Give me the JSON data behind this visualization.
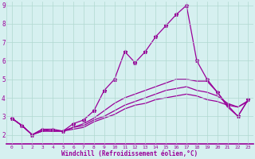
{
  "xlabel": "Windchill (Refroidissement éolien,°C)",
  "bg_color": "#d6f0f0",
  "line_color": "#990099",
  "xlim": [
    -0.5,
    23.5
  ],
  "ylim": [
    1.5,
    9.2
  ],
  "xtick_labels": [
    "0",
    "1",
    "2",
    "3",
    "4",
    "5",
    "6",
    "7",
    "8",
    "9",
    "10",
    "11",
    "12",
    "13",
    "14",
    "15",
    "16",
    "17",
    "18",
    "19",
    "20",
    "21",
    "22",
    "23"
  ],
  "xtick_positions": [
    0,
    1,
    2,
    3,
    4,
    5,
    6,
    7,
    8,
    9,
    10,
    11,
    12,
    13,
    14,
    15,
    16,
    17,
    18,
    19,
    20,
    21,
    22,
    23
  ],
  "ytick_positions": [
    2,
    3,
    4,
    5,
    6,
    7,
    8,
    9
  ],
  "ytick_labels": [
    "2",
    "3",
    "4",
    "5",
    "6",
    "7",
    "8",
    "9"
  ],
  "grid_color": "#b0d8d0",
  "series": [
    {
      "x": [
        0,
        1,
        2,
        3,
        4,
        5,
        6,
        7,
        8,
        9,
        10,
        11,
        12,
        13,
        14,
        15,
        16,
        17,
        18,
        19,
        20,
        21,
        22,
        23
      ],
      "y": [
        2.9,
        2.5,
        2.0,
        2.3,
        2.3,
        2.2,
        2.6,
        2.8,
        3.3,
        4.4,
        5.0,
        6.5,
        5.9,
        6.5,
        7.3,
        7.9,
        8.5,
        9.0,
        6.0,
        5.0,
        4.3,
        3.6,
        3.0,
        3.9
      ],
      "marker": "*",
      "lw": 0.9
    },
    {
      "x": [
        0,
        1,
        2,
        3,
        4,
        5,
        6,
        7,
        8,
        9,
        10,
        11,
        12,
        13,
        14,
        15,
        16,
        17,
        18,
        19,
        20,
        21,
        22,
        23
      ],
      "y": [
        2.9,
        2.5,
        2.0,
        2.3,
        2.2,
        2.2,
        2.4,
        2.6,
        2.9,
        3.3,
        3.7,
        4.0,
        4.2,
        4.4,
        4.6,
        4.8,
        5.0,
        5.0,
        4.9,
        4.9,
        4.3,
        3.5,
        3.0,
        3.9
      ],
      "marker": null,
      "lw": 0.9
    },
    {
      "x": [
        0,
        1,
        2,
        3,
        4,
        5,
        6,
        7,
        8,
        9,
        10,
        11,
        12,
        13,
        14,
        15,
        16,
        17,
        18,
        19,
        20,
        21,
        22,
        23
      ],
      "y": [
        2.9,
        2.5,
        2.0,
        2.2,
        2.2,
        2.2,
        2.4,
        2.5,
        2.8,
        3.0,
        3.3,
        3.6,
        3.8,
        4.0,
        4.2,
        4.4,
        4.5,
        4.6,
        4.4,
        4.3,
        4.1,
        3.7,
        3.5,
        3.85
      ],
      "marker": null,
      "lw": 0.9
    },
    {
      "x": [
        0,
        1,
        2,
        3,
        4,
        5,
        6,
        7,
        8,
        9,
        10,
        11,
        12,
        13,
        14,
        15,
        16,
        17,
        18,
        19,
        20,
        21,
        22,
        23
      ],
      "y": [
        2.9,
        2.5,
        2.0,
        2.2,
        2.2,
        2.2,
        2.3,
        2.4,
        2.7,
        2.9,
        3.1,
        3.4,
        3.6,
        3.7,
        3.9,
        4.0,
        4.1,
        4.2,
        4.1,
        3.9,
        3.8,
        3.6,
        3.5,
        3.8
      ],
      "marker": null,
      "lw": 0.9
    }
  ]
}
